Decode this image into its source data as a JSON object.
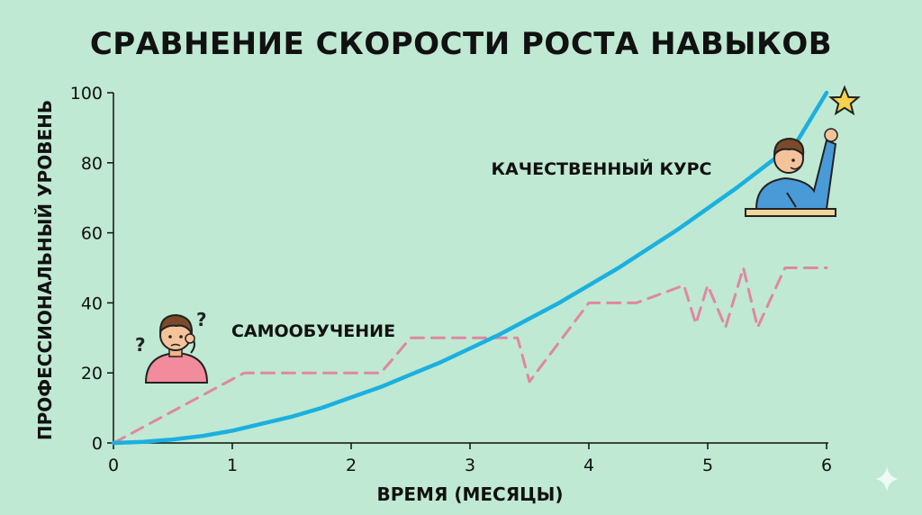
{
  "chart_data": {
    "type": "line",
    "title": "СРАВНЕНИЕ СКОРОСТИ РОСТА НАВЫКОВ",
    "xlabel": "ВРЕМЯ (МЕСЯЦЫ)",
    "ylabel": "ПРОФЕССИОНАЛЬНЫЙ УРОВЕНЬ",
    "xlim": [
      0,
      6
    ],
    "ylim": [
      0,
      100
    ],
    "xticks": [
      0,
      1,
      2,
      3,
      4,
      5,
      6
    ],
    "yticks": [
      0,
      20,
      40,
      60,
      80,
      100
    ],
    "grid": false,
    "series": [
      {
        "name": "КАЧЕСТВЕННЫЙ КУРС",
        "style": "solid",
        "color": "#1ab0e0",
        "x": [
          0,
          0.25,
          0.5,
          0.75,
          1,
          1.25,
          1.5,
          1.75,
          2,
          2.25,
          2.5,
          2.75,
          3,
          3.25,
          3.5,
          3.75,
          4,
          4.25,
          4.5,
          4.75,
          5,
          5.25,
          5.5,
          5.75,
          6
        ],
        "y": [
          0,
          0.3,
          1,
          2,
          3.5,
          5.5,
          7.5,
          10,
          13,
          16,
          19.5,
          23,
          27,
          31,
          35.5,
          40,
          45,
          50,
          55.5,
          61,
          67,
          73,
          79.5,
          86,
          100
        ]
      },
      {
        "name": "САМООБУЧЕНИЕ",
        "style": "dashed",
        "color": "#e0879f",
        "x": [
          0,
          1.1,
          2.25,
          2.5,
          3.4,
          3.5,
          4.0,
          4.4,
          4.8,
          4.9,
          5.0,
          5.15,
          5.3,
          5.42,
          5.65,
          6.0
        ],
        "y": [
          0,
          20,
          20,
          30,
          30,
          17.5,
          40,
          40,
          45,
          34,
          45,
          33,
          50,
          33,
          50,
          50
        ]
      }
    ],
    "annotations": [
      {
        "text": "КАЧЕСТВЕННЫЙ КУРС",
        "series": 0
      },
      {
        "text": "САМООБУЧЕНИЕ",
        "series": 1
      }
    ]
  },
  "colors": {
    "background": "#bfe9d2",
    "accent_line": "#1ab0e0",
    "dashed_line": "#e0879f",
    "star": "#f7d24a"
  },
  "icons": [
    "thinking-person-icon",
    "question-mark-icon",
    "raised-hand-student-icon",
    "star-icon",
    "sparkle-icon"
  ]
}
